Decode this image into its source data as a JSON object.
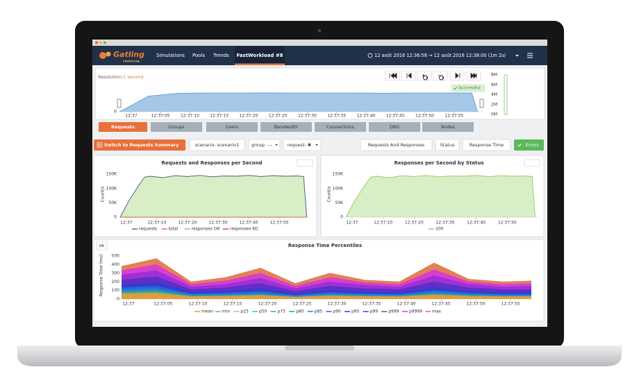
{
  "nav": {
    "logo": "Gatling",
    "logo_sub": "FRONTLINE",
    "items": [
      "Simulations",
      "Pools",
      "Trends",
      "FastWorkload #8"
    ],
    "time_range": "12 août 2016 12:36:58 → 12 août 2016 12:38:00 (1m 2s)"
  },
  "timeline_panel": {
    "resolution_label": "Resolution:",
    "resolution": "1 second",
    "status": "Successful"
  },
  "tabs": [
    "Requests",
    "Groups",
    "Users",
    "Bandwidth",
    "Connections",
    "DNS",
    "Nodes"
  ],
  "toolbar": {
    "summary_button": "Switch to Requests Summary",
    "filters": [
      "scenario: scenario1",
      "group: ---",
      "request: ✱"
    ],
    "views": [
      "Requests And Responses",
      "Status",
      "Response Time",
      "Errors"
    ]
  },
  "percentiles_button": "ok",
  "chart_data": [
    {
      "type": "area",
      "x": [
        0,
        5,
        10,
        15,
        20,
        25,
        30,
        35,
        40,
        45,
        50,
        55,
        60,
        61
      ],
      "values": [
        0,
        800,
        950,
        960,
        960,
        965,
        960,
        960,
        960,
        955,
        960,
        960,
        960,
        0
      ],
      "color": "#5b9bd5",
      "xlim": [
        0,
        62
      ],
      "xticks": [
        {
          "value": 2,
          "label": "12:37"
        },
        {
          "value": 7,
          "label": "12:37:05"
        },
        {
          "value": 12,
          "label": "12:37:10"
        },
        {
          "value": 17,
          "label": "12:37:15"
        },
        {
          "value": 22,
          "label": "12:37:20"
        },
        {
          "value": 27,
          "label": "12:37:25"
        },
        {
          "value": 32,
          "label": "12:37:30"
        },
        {
          "value": 37,
          "label": "12:37:35"
        },
        {
          "value": 42,
          "label": "12:37:40"
        },
        {
          "value": 47,
          "label": "12:37:45"
        },
        {
          "value": 52,
          "label": "12:37:50"
        },
        {
          "value": 57,
          "label": "12:37:55"
        }
      ],
      "ylim": [
        0,
        1000
      ],
      "yticks": [
        0
      ],
      "grid": false
    },
    {
      "type": "bar",
      "categories": [
        null
      ],
      "values": [
        8000000
      ],
      "color": "#7ac46b",
      "ylim": [
        0,
        8000000
      ],
      "yticks": [
        {
          "value": 8000000,
          "label": "8M"
        },
        {
          "value": 6000000,
          "label": "6M"
        },
        {
          "value": 4000000,
          "label": "4M"
        },
        {
          "value": 2000000,
          "label": "2M"
        },
        {
          "value": 0,
          "label": "0M"
        }
      ],
      "grid": false
    },
    {
      "type": "area",
      "title": "Requests and Responses per Second",
      "y_label": "Count/s",
      "x": [
        0,
        3,
        6,
        8,
        10,
        14,
        18,
        22,
        26,
        30,
        34,
        38,
        42,
        46,
        50,
        54,
        58,
        60,
        61
      ],
      "series": [
        {
          "name": "requests",
          "color": "#4572a7",
          "values": [
            0,
            60000,
            110000,
            140000,
            143000,
            138000,
            145000,
            142000,
            146000,
            141000,
            144000,
            143000,
            146000,
            142000,
            145000,
            143000,
            144000,
            142000,
            0
          ]
        },
        {
          "name": "total",
          "color": "#e8703a",
          "values": [
            0,
            60000,
            110000,
            140000,
            143000,
            138000,
            145000,
            142000,
            146000,
            141000,
            144000,
            143000,
            146000,
            142000,
            145000,
            143000,
            144000,
            142000,
            0
          ]
        },
        {
          "name": "responses OK",
          "color": "#8fce5b",
          "values": [
            0,
            60000,
            110000,
            140000,
            143000,
            138000,
            145000,
            142000,
            146000,
            141000,
            144000,
            143000,
            146000,
            142000,
            145000,
            143000,
            144000,
            142000,
            0
          ]
        },
        {
          "name": "responses KO",
          "color": "#e04b3a",
          "values": [
            0,
            0,
            0,
            0,
            0,
            0,
            0,
            0,
            0,
            0,
            0,
            0,
            0,
            0,
            0,
            0,
            0,
            0,
            0
          ]
        }
      ],
      "xlim": [
        0,
        62
      ],
      "xticks": [
        {
          "value": 2,
          "label": "12:37"
        },
        {
          "value": 12,
          "label": "12:37:10"
        },
        {
          "value": 22,
          "label": "12:37:20"
        },
        {
          "value": 32,
          "label": "12:37:30"
        },
        {
          "value": 42,
          "label": "12:37:40"
        },
        {
          "value": 52,
          "label": "12:37:50"
        }
      ],
      "ylim": [
        0,
        160000
      ],
      "yticks": [
        {
          "value": 150000,
          "label": "150K"
        },
        {
          "value": 100000,
          "label": "100K"
        },
        {
          "value": 50000,
          "label": "50K"
        },
        0
      ],
      "grid": false
    },
    {
      "type": "area",
      "title": "Responses per Second by Status",
      "y_label": "Count/s",
      "x": [
        0,
        3,
        6,
        8,
        10,
        14,
        18,
        22,
        26,
        30,
        34,
        38,
        42,
        46,
        50,
        54,
        58,
        60,
        61
      ],
      "series": [
        {
          "name": "200",
          "color": "#8fce5b",
          "values": [
            0,
            60000,
            110000,
            140000,
            143000,
            138000,
            145000,
            142000,
            146000,
            141000,
            144000,
            143000,
            146000,
            142000,
            145000,
            143000,
            144000,
            142000,
            0
          ]
        }
      ],
      "xlim": [
        0,
        62
      ],
      "xticks": [
        {
          "value": 2,
          "label": "12:37"
        },
        {
          "value": 12,
          "label": "12:37:10"
        },
        {
          "value": 22,
          "label": "12:37:20"
        },
        {
          "value": 32,
          "label": "12:37:30"
        },
        {
          "value": 42,
          "label": "12:37:40"
        },
        {
          "value": 52,
          "label": "12:37:50"
        }
      ],
      "ylim": [
        0,
        160000
      ],
      "yticks": [
        {
          "value": 150000,
          "label": "150K"
        },
        {
          "value": 100000,
          "label": "100K"
        },
        {
          "value": 50000,
          "label": "50K"
        },
        0
      ],
      "grid": false
    },
    {
      "type": "area",
      "title": "Response Time Percentiles",
      "y_label": "Response Time (ms)",
      "x": [
        1,
        6,
        11,
        16,
        21,
        26,
        31,
        36,
        41,
        46,
        51,
        56,
        60
      ],
      "series": [
        {
          "name": "mean",
          "color": "#e89a3a",
          "values": [
            60,
            70,
            28,
            33,
            42,
            21,
            36,
            30,
            27,
            48,
            33,
            27,
            27
          ]
        },
        {
          "name": "min",
          "color": "#5bc0a5",
          "values": [
            8,
            9,
            4,
            4,
            5,
            3,
            4,
            4,
            3,
            6,
            4,
            3,
            3
          ]
        },
        {
          "name": "p25",
          "color": "#8cd36b",
          "values": [
            25,
            28,
            11,
            12,
            15,
            8,
            13,
            11,
            10,
            17,
            12,
            10,
            10
          ]
        },
        {
          "name": "p50",
          "color": "#2fc7c7",
          "values": [
            45,
            50,
            20,
            22,
            27,
            14,
            24,
            20,
            18,
            31,
            22,
            18,
            18
          ]
        },
        {
          "name": "p75",
          "color": "#3ab27a",
          "values": [
            75,
            85,
            33,
            37,
            45,
            23,
            40,
            33,
            30,
            52,
            36,
            30,
            30
          ]
        },
        {
          "name": "p80",
          "color": "#1a9fb5",
          "values": [
            90,
            100,
            40,
            45,
            55,
            28,
            48,
            40,
            36,
            64,
            44,
            36,
            36
          ]
        },
        {
          "name": "p85",
          "color": "#2b7fd6",
          "values": [
            110,
            120,
            50,
            55,
            70,
            35,
            60,
            50,
            45,
            80,
            55,
            45,
            45
          ]
        },
        {
          "name": "p90",
          "color": "#3063d6",
          "values": [
            130,
            150,
            60,
            70,
            90,
            45,
            75,
            60,
            55,
            100,
            70,
            55,
            55
          ]
        },
        {
          "name": "p95",
          "color": "#2b3fd0",
          "values": [
            160,
            190,
            80,
            90,
            120,
            60,
            100,
            80,
            70,
            130,
            90,
            70,
            70
          ]
        },
        {
          "name": "p99",
          "color": "#5a2fc7",
          "values": [
            220,
            260,
            110,
            130,
            180,
            90,
            150,
            120,
            110,
            200,
            130,
            110,
            110
          ]
        },
        {
          "name": "p999",
          "color": "#9a2fd6",
          "values": [
            280,
            330,
            140,
            170,
            240,
            120,
            200,
            160,
            140,
            270,
            170,
            140,
            150
          ]
        },
        {
          "name": "p9999",
          "color": "#d63ad6",
          "values": [
            330,
            400,
            170,
            210,
            300,
            150,
            250,
            190,
            170,
            340,
            200,
            170,
            180
          ]
        },
        {
          "name": "max",
          "color": "#e0764a",
          "values": [
            380,
            470,
            200,
            250,
            360,
            180,
            300,
            220,
            200,
            420,
            230,
            200,
            210
          ]
        }
      ],
      "xlim": [
        0,
        60
      ],
      "xticks": [
        {
          "value": 2,
          "label": "12:37"
        },
        {
          "value": 7,
          "label": "12:37:05"
        },
        {
          "value": 12,
          "label": "12:37:10"
        },
        {
          "value": 17,
          "label": "12:37:15"
        },
        {
          "value": 22,
          "label": "12:37:20"
        },
        {
          "value": 27,
          "label": "12:37:25"
        },
        {
          "value": 32,
          "label": "12:37:30"
        },
        {
          "value": 37,
          "label": "12:37:35"
        },
        {
          "value": 42,
          "label": "12:37:40"
        },
        {
          "value": 47,
          "label": "12:37:45"
        },
        {
          "value": 52,
          "label": "12:37:50"
        },
        {
          "value": 57,
          "label": "12:37:55"
        }
      ],
      "ylim": [
        0,
        550
      ],
      "yticks": [
        500,
        400,
        300,
        200,
        100,
        0
      ],
      "grid": false
    }
  ]
}
